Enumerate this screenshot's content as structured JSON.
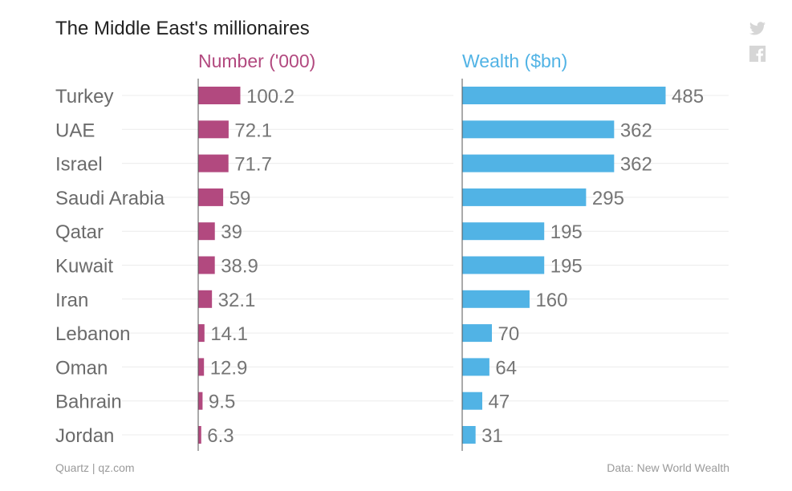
{
  "header": {
    "title": "The Middle East's millionaires",
    "twitter_icon": "twitter-icon",
    "facebook_icon": "facebook-icon"
  },
  "footer": {
    "source_left": "Quartz | qz.com",
    "source_right": "Data: New World Wealth"
  },
  "colors": {
    "number": "#b2497f",
    "wealth": "#51b3e5",
    "label": "#6b6b6b",
    "value": "#757575",
    "grid": "#ececec",
    "axis": "#555555",
    "title": "#222222",
    "icon": "#d6d6d6"
  },
  "chart_data": {
    "type": "bar",
    "orientation": "horizontal",
    "title": "The Middle East's millionaires",
    "categories": [
      "Turkey",
      "UAE",
      "Israel",
      "Saudi Arabia",
      "Qatar",
      "Kuwait",
      "Iran",
      "Lebanon",
      "Oman",
      "Bahrain",
      "Jordan"
    ],
    "series": [
      {
        "name": "Number ('000)",
        "values": [
          100.2,
          72.1,
          71.7,
          59,
          39,
          38.9,
          32.1,
          14.1,
          12.9,
          9.5,
          6.3
        ],
        "labels": [
          "100.2",
          "72.1",
          "71.7",
          "59",
          "39",
          "38.9",
          "32.1",
          "14.1",
          "12.9",
          "9.5",
          "6.3"
        ],
        "xlim": [
          0,
          100.2
        ]
      },
      {
        "name": "Wealth ($bn)",
        "values": [
          485,
          362,
          362,
          295,
          195,
          195,
          160,
          70,
          64,
          47,
          31
        ],
        "labels": [
          "485",
          "362",
          "362",
          "295",
          "195",
          "195",
          "160",
          "70",
          "64",
          "47",
          "31"
        ],
        "xlim": [
          0,
          485
        ]
      }
    ],
    "grid": true,
    "source": "Data: New World Wealth"
  }
}
